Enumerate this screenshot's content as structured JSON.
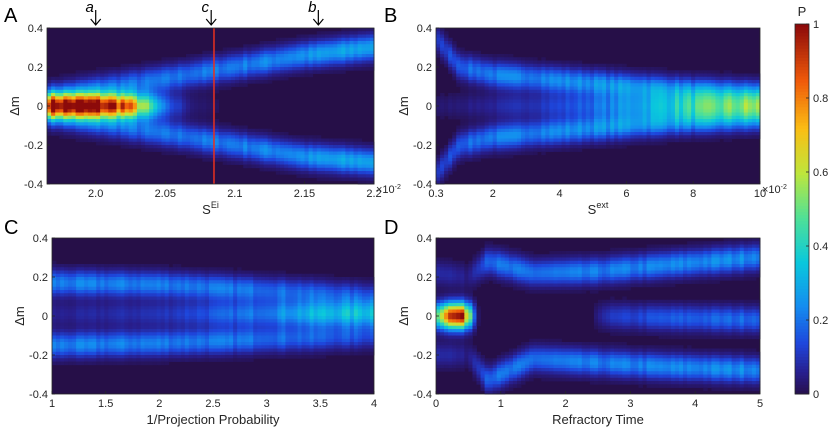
{
  "colorbar": {
    "label": "P",
    "ticks": [
      0,
      0.2,
      0.4,
      0.6,
      0.8,
      1
    ],
    "tick_labels": [
      "0",
      "0.2",
      "0.4",
      "0.6",
      "0.8",
      "1"
    ],
    "colormap": "jet"
  },
  "chart_data": [
    {
      "panel": "A",
      "type": "heatmap",
      "xlabel": "S",
      "xlabel_sup": "Ei",
      "ylabel": "Δm",
      "xlim": [
        1.965,
        2.2
      ],
      "ylim": [
        -0.4,
        0.4
      ],
      "xticks": [
        2.0,
        2.05,
        2.1,
        2.15,
        2.2
      ],
      "xtick_labels": [
        "2.0",
        "2.05",
        "2.1",
        "2.15",
        "2.2"
      ],
      "yticks": [
        -0.4,
        -0.2,
        0,
        0.2,
        0.4
      ],
      "ytick_labels": [
        "-0.4",
        "-0.2",
        "0",
        "0.2",
        "0.4"
      ],
      "x_multiplier": "×10",
      "x_multiplier_exp": "-2",
      "vline": {
        "x": 2.085,
        "color": "#e8311f"
      },
      "annotations": [
        {
          "label": "a",
          "x": 2.0
        },
        {
          "label": "c",
          "x": 2.083
        },
        {
          "label": "b",
          "x": 2.16
        }
      ],
      "branches": [
        {
          "points": [
            [
              1.965,
              0
            ],
            [
              2.0,
              0
            ],
            [
              2.02,
              0
            ],
            [
              2.04,
              0
            ],
            [
              2.06,
              0
            ],
            [
              2.08,
              0
            ],
            [
              2.1,
              0
            ],
            [
              2.2,
              0
            ]
          ],
          "peak": [
            [
              1.965,
              1.0
            ],
            [
              2.0,
              1.0
            ],
            [
              2.02,
              0.9
            ],
            [
              2.035,
              0.55
            ],
            [
              2.05,
              0.18
            ],
            [
              2.07,
              0.04
            ],
            [
              2.1,
              0
            ],
            [
              2.2,
              0
            ]
          ]
        },
        {
          "points": [
            [
              1.965,
              0.06
            ],
            [
              2.0,
              0.09
            ],
            [
              2.05,
              0.14
            ],
            [
              2.1,
              0.2
            ],
            [
              2.15,
              0.26
            ],
            [
              2.2,
              0.3
            ]
          ],
          "peak": [
            [
              1.965,
              0.08
            ],
            [
              2.0,
              0.17
            ],
            [
              2.05,
              0.2
            ],
            [
              2.1,
              0.22
            ],
            [
              2.15,
              0.25
            ],
            [
              2.2,
              0.3
            ]
          ]
        },
        {
          "points": [
            [
              1.965,
              -0.06
            ],
            [
              2.0,
              -0.09
            ],
            [
              2.05,
              -0.14
            ],
            [
              2.1,
              -0.2
            ],
            [
              2.15,
              -0.26
            ],
            [
              2.2,
              -0.29
            ]
          ],
          "peak": [
            [
              1.965,
              0.08
            ],
            [
              2.0,
              0.17
            ],
            [
              2.05,
              0.2
            ],
            [
              2.1,
              0.22
            ],
            [
              2.15,
              0.25
            ],
            [
              2.2,
              0.3
            ]
          ]
        }
      ]
    },
    {
      "panel": "B",
      "type": "heatmap",
      "xlabel": "S",
      "xlabel_sup": "ext",
      "ylabel": "Δm",
      "xlim": [
        0.3,
        10
      ],
      "ylim": [
        -0.4,
        0.4
      ],
      "xticks": [
        0.3,
        2,
        4,
        6,
        8,
        10
      ],
      "xtick_labels": [
        "0.3",
        "2",
        "4",
        "6",
        "8",
        "10"
      ],
      "yticks": [
        -0.4,
        -0.2,
        0,
        0.2,
        0.4
      ],
      "ytick_labels": [
        "-0.4",
        "-0.2",
        "0",
        "0.2",
        "0.4"
      ],
      "x_multiplier": "×10",
      "x_multiplier_exp": "-2",
      "branches": [
        {
          "points": [
            [
              0.3,
              0.35
            ],
            [
              1.0,
              0.2
            ],
            [
              2,
              0.16
            ],
            [
              4,
              0.13
            ],
            [
              6,
              0.1
            ],
            [
              8,
              0.075
            ],
            [
              10,
              0.06
            ]
          ],
          "peak": [
            [
              0.3,
              0.1
            ],
            [
              1,
              0.18
            ],
            [
              2,
              0.22
            ],
            [
              4,
              0.24
            ],
            [
              6,
              0.26
            ],
            [
              8,
              0.26
            ],
            [
              10,
              0.25
            ]
          ]
        },
        {
          "points": [
            [
              0.3,
              -0.35
            ],
            [
              1.0,
              -0.2
            ],
            [
              2,
              -0.16
            ],
            [
              4,
              -0.13
            ],
            [
              6,
              -0.1
            ],
            [
              8,
              -0.075
            ],
            [
              10,
              -0.06
            ]
          ],
          "peak": [
            [
              0.3,
              0.1
            ],
            [
              1,
              0.18
            ],
            [
              2,
              0.22
            ],
            [
              4,
              0.24
            ],
            [
              6,
              0.26
            ],
            [
              8,
              0.26
            ],
            [
              10,
              0.25
            ]
          ]
        },
        {
          "points": [
            [
              0.3,
              0
            ],
            [
              2,
              0
            ],
            [
              4,
              0
            ],
            [
              6,
              0
            ],
            [
              8,
              0
            ],
            [
              10,
              0
            ]
          ],
          "peak": [
            [
              0.3,
              0.03
            ],
            [
              2,
              0.07
            ],
            [
              4,
              0.13
            ],
            [
              6,
              0.22
            ],
            [
              8,
              0.32
            ],
            [
              10,
              0.36
            ]
          ]
        }
      ]
    },
    {
      "panel": "C",
      "type": "heatmap",
      "xlabel": "1/Projection Probability",
      "ylabel": "Δm",
      "xlim": [
        1,
        4
      ],
      "ylim": [
        -0.4,
        0.4
      ],
      "xticks": [
        1,
        1.5,
        2,
        2.5,
        3,
        3.5,
        4
      ],
      "xtick_labels": [
        "1",
        "1.5",
        "2",
        "2.5",
        "3",
        "3.5",
        "4"
      ],
      "yticks": [
        -0.4,
        -0.2,
        0,
        0.2,
        0.4
      ],
      "ytick_labels": [
        "-0.4",
        "-0.2",
        "0",
        "0.2",
        "0.4"
      ],
      "branches": [
        {
          "points": [
            [
              1,
              0.17
            ],
            [
              2,
              0.16
            ],
            [
              3,
              0.13
            ],
            [
              4,
              0.1
            ]
          ],
          "peak": [
            [
              1,
              0.22
            ],
            [
              2,
              0.22
            ],
            [
              3,
              0.2
            ],
            [
              4,
              0.14
            ]
          ]
        },
        {
          "points": [
            [
              1,
              -0.15
            ],
            [
              2,
              -0.14
            ],
            [
              3,
              -0.12
            ],
            [
              4,
              -0.1
            ]
          ],
          "peak": [
            [
              1,
              0.22
            ],
            [
              2,
              0.22
            ],
            [
              3,
              0.2
            ],
            [
              4,
              0.14
            ]
          ]
        },
        {
          "points": [
            [
              1,
              0.01
            ],
            [
              2,
              0.01
            ],
            [
              3,
              0.01
            ],
            [
              4,
              0.01
            ]
          ],
          "peak": [
            [
              1,
              0.06
            ],
            [
              2,
              0.1
            ],
            [
              3,
              0.22
            ],
            [
              3.5,
              0.32
            ],
            [
              4,
              0.34
            ]
          ]
        }
      ]
    },
    {
      "panel": "D",
      "type": "heatmap",
      "xlabel": "Refractory Time",
      "ylabel": "Δm",
      "xlim": [
        0,
        5
      ],
      "ylim": [
        -0.4,
        0.4
      ],
      "xticks": [
        0,
        1,
        2,
        3,
        4,
        5
      ],
      "xtick_labels": [
        "0",
        "1",
        "2",
        "3",
        "4",
        "5"
      ],
      "yticks": [
        -0.4,
        -0.2,
        0,
        0.2,
        0.4
      ],
      "ytick_labels": [
        "-0.4",
        "-0.2",
        "0",
        "0.2",
        "0.4"
      ],
      "branches": [
        {
          "points": [
            [
              0,
              0
            ],
            [
              0.35,
              0
            ],
            [
              0.55,
              0
            ],
            [
              0.7,
              0
            ]
          ],
          "peak": [
            [
              0,
              0.5
            ],
            [
              0.15,
              0.85
            ],
            [
              0.35,
              1.0
            ],
            [
              0.5,
              0.7
            ],
            [
              0.62,
              0.05
            ],
            [
              0.7,
              0
            ]
          ]
        },
        {
          "points": [
            [
              0,
              0.22
            ],
            [
              0.5,
              0.2
            ],
            [
              0.8,
              0.28
            ],
            [
              1.5,
              0.22
            ],
            [
              2.5,
              0.23
            ],
            [
              3.5,
              0.26
            ],
            [
              5,
              0.3
            ]
          ],
          "peak": [
            [
              0,
              0.1
            ],
            [
              0.5,
              0.05
            ],
            [
              0.8,
              0.2
            ],
            [
              1.5,
              0.2
            ],
            [
              3,
              0.22
            ],
            [
              5,
              0.25
            ]
          ]
        },
        {
          "points": [
            [
              0,
              -0.2
            ],
            [
              0.5,
              -0.2
            ],
            [
              0.8,
              -0.33
            ],
            [
              1.5,
              -0.22
            ],
            [
              2.5,
              -0.24
            ],
            [
              3.5,
              -0.26
            ],
            [
              5,
              -0.28
            ]
          ],
          "peak": [
            [
              0,
              0.1
            ],
            [
              0.5,
              0.05
            ],
            [
              0.8,
              0.2
            ],
            [
              1.5,
              0.2
            ],
            [
              3,
              0.22
            ],
            [
              5,
              0.25
            ]
          ]
        },
        {
          "points": [
            [
              0,
              0
            ],
            [
              2.4,
              0
            ],
            [
              2.6,
              0
            ],
            [
              3.5,
              -0.01
            ],
            [
              5,
              -0.02
            ]
          ],
          "peak": [
            [
              0,
              0
            ],
            [
              2.4,
              0
            ],
            [
              2.6,
              0.1
            ],
            [
              3.5,
              0.16
            ],
            [
              5,
              0.2
            ]
          ]
        }
      ]
    }
  ],
  "panels": [
    {
      "letter": "A"
    },
    {
      "letter": "B"
    },
    {
      "letter": "C"
    },
    {
      "letter": "D"
    }
  ]
}
